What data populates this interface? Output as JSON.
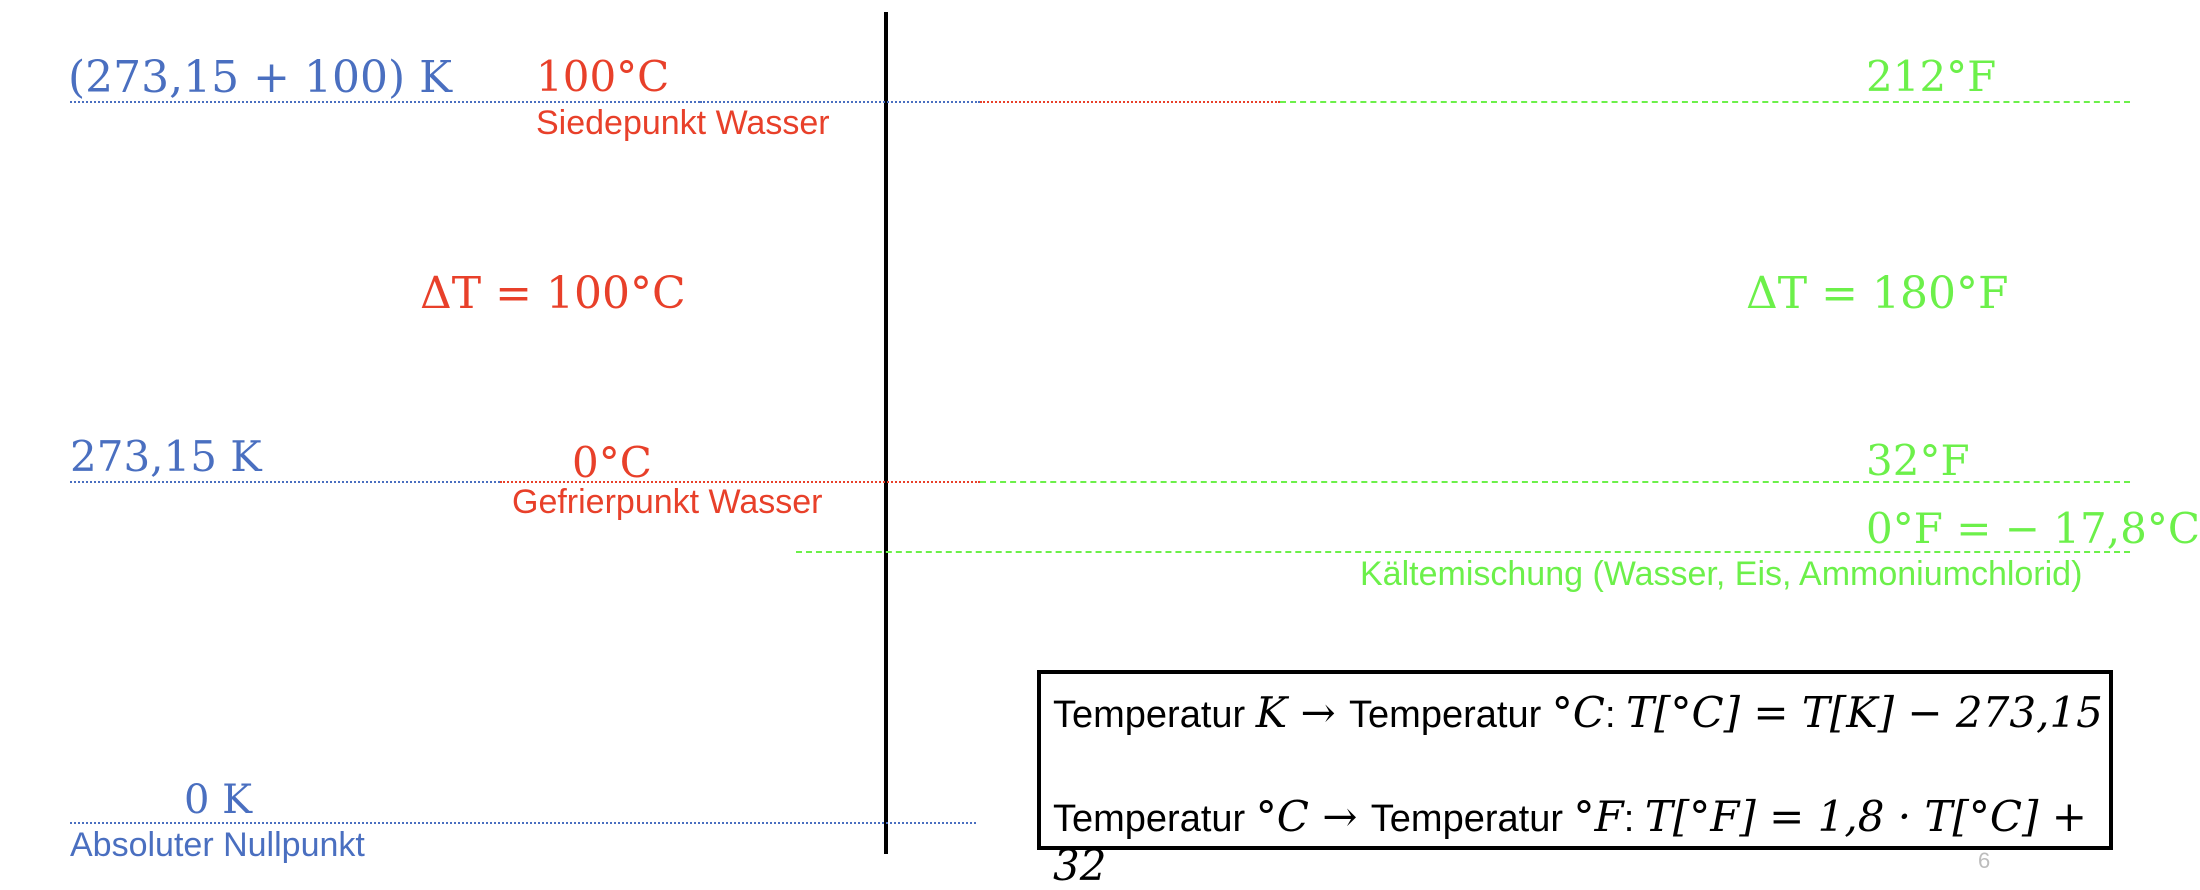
{
  "kelvin": {
    "boiling": "(273,15 + 100)  K",
    "freezing": "273,15 K",
    "zero": "0 K",
    "zero_caption": "Absoluter Nullpunkt",
    "color": "#4a6fc0"
  },
  "celsius": {
    "boiling": "100°C",
    "boiling_caption": "Siedepunkt Wasser",
    "delta": "ΔT = 100°C",
    "freezing": "0°C",
    "freezing_caption": "Gefrierpunkt Wasser",
    "color": "#e8402a"
  },
  "fahrenheit": {
    "boiling": "212°F",
    "delta": "ΔT = 180°F",
    "freezing": "32°F",
    "zero": "0°F = − 17,8°C",
    "zero_caption": "Kältemischung (Wasser, Eis, Ammoniumchlorid)",
    "color": "#6cf04a"
  },
  "formulas": {
    "row1_prefix": "Temperatur ",
    "row1_unit_a": "K",
    "row1_arrow": " → ",
    "row1_mid": "Temperatur ",
    "row1_unit_b": "°C",
    "row1_colon": ": ",
    "row1_expr": "T[°C] = T[K] − 273,15",
    "row2_prefix": "Temperatur ",
    "row2_unit_a": "°C",
    "row2_arrow": " → ",
    "row2_mid": "Temperatur ",
    "row2_unit_b": "°F",
    "row2_colon": ": ",
    "row2_expr": "T[°F] = 1,8 · T[°C] + 32"
  },
  "page_number": "6"
}
